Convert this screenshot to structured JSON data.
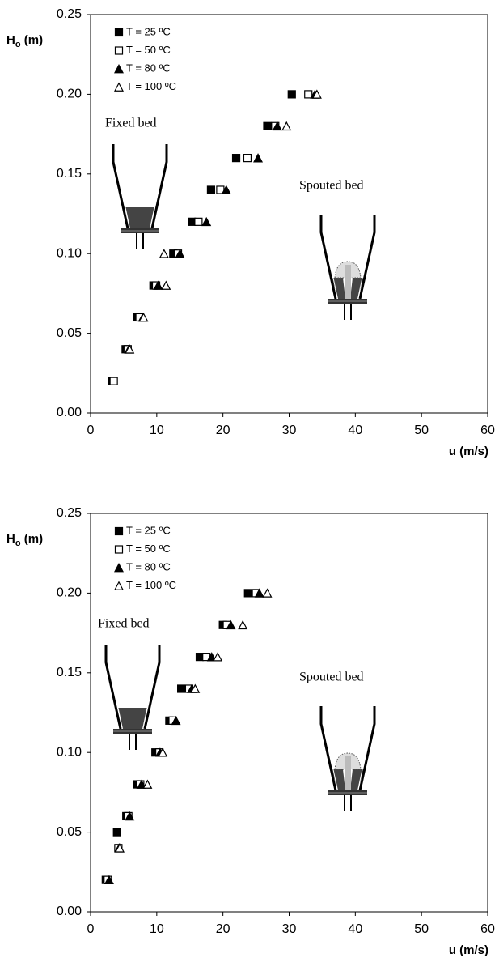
{
  "chart_data": [
    {
      "type": "scatter",
      "xlim": [
        0,
        60
      ],
      "ylim": [
        0,
        0.25
      ],
      "xticks": [
        0,
        10,
        20,
        30,
        40,
        50,
        60
      ],
      "yticks": [
        {
          "value": 0,
          "label": "0.00"
        },
        {
          "value": 0.05,
          "label": "0.05"
        },
        {
          "value": 0.1,
          "label": "0.10"
        },
        {
          "value": 0.15,
          "label": "0.15"
        },
        {
          "value": 0.2,
          "label": "0.20"
        },
        {
          "value": 0.25,
          "label": "0.25"
        }
      ],
      "x_label": "u (m/s)",
      "y_label": [
        "H",
        "o",
        " (m)"
      ],
      "legend": "upper left",
      "annotations": [
        "Fixed bed",
        "Spouted bed"
      ],
      "series": [
        {
          "name": "T = 25 ºC",
          "marker": "square",
          "filled": true,
          "color": "#000000",
          "x": [
            3.3,
            5.3,
            7.1,
            9.5,
            12.5,
            15.3,
            18.2,
            22.0,
            26.7,
            30.4
          ],
          "values": [
            0.02,
            0.04,
            0.06,
            0.08,
            0.1,
            0.12,
            0.14,
            0.16,
            0.18,
            0.2
          ]
        },
        {
          "name": "T = 50 ºC",
          "marker": "square",
          "filled": false,
          "color": "#000000",
          "x": [
            3.5,
            5.6,
            7.4,
            9.9,
            13.2,
            16.3,
            19.6,
            23.7,
            27.9,
            32.9
          ],
          "values": [
            0.02,
            0.04,
            0.06,
            0.08,
            0.1,
            0.12,
            0.14,
            0.16,
            0.18,
            0.2
          ]
        },
        {
          "name": "T = 80 ºC",
          "marker": "triangle",
          "filled": true,
          "color": "#000000",
          "x": [
            5.8,
            7.9,
            10.2,
            13.5,
            17.5,
            20.5,
            25.3,
            28.2,
            33.9
          ],
          "values": [
            0.04,
            0.06,
            0.08,
            0.1,
            0.12,
            0.14,
            0.16,
            0.18,
            0.2
          ]
        },
        {
          "name": "T = 100 ºC",
          "marker": "triangle",
          "filled": false,
          "color": "#000000",
          "x": [
            5.9,
            8.0,
            11.4,
            11.1,
            29.6,
            34.2
          ],
          "values": [
            0.04,
            0.06,
            0.08,
            0.1,
            0.18,
            0.2
          ]
        }
      ]
    },
    {
      "type": "scatter",
      "xlim": [
        0,
        60
      ],
      "ylim": [
        0,
        0.25
      ],
      "xticks": [
        0,
        10,
        20,
        30,
        40,
        50,
        60
      ],
      "yticks": [
        {
          "value": 0,
          "label": "0.00"
        },
        {
          "value": 0.05,
          "label": "0.05"
        },
        {
          "value": 0.1,
          "label": "0.10"
        },
        {
          "value": 0.15,
          "label": "0.15"
        },
        {
          "value": 0.2,
          "label": "0.20"
        },
        {
          "value": 0.25,
          "label": "0.25"
        }
      ],
      "x_label": "u (m/s)",
      "y_label": [
        "H",
        "o",
        " (m)"
      ],
      "legend": "upper left",
      "annotations": [
        "Fixed bed",
        "Spouted bed"
      ],
      "series": [
        {
          "name": "T = 25 ºC",
          "marker": "square",
          "filled": true,
          "color": "#000000",
          "x": [
            2.3,
            4.0,
            5.4,
            7.1,
            9.8,
            11.9,
            13.7,
            16.5,
            20.0,
            23.8
          ],
          "values": [
            0.02,
            0.05,
            0.06,
            0.08,
            0.1,
            0.12,
            0.14,
            0.16,
            0.18,
            0.2
          ]
        },
        {
          "name": "T = 50 ºC",
          "marker": "square",
          "filled": false,
          "color": "#000000",
          "x": [
            2.6,
            4.2,
            5.7,
            7.5,
            10.4,
            12.4,
            14.9,
            17.5,
            20.6,
            25.0
          ],
          "values": [
            0.02,
            0.04,
            0.06,
            0.08,
            0.1,
            0.12,
            0.14,
            0.16,
            0.18,
            0.2
          ]
        },
        {
          "name": "T = 80 ºC",
          "marker": "triangle",
          "filled": true,
          "color": "#000000",
          "x": [
            2.8,
            4.3,
            5.9,
            7.7,
            10.5,
            12.9,
            15.3,
            18.3,
            21.2,
            25.5
          ],
          "values": [
            0.02,
            0.04,
            0.06,
            0.08,
            0.1,
            0.12,
            0.14,
            0.16,
            0.18,
            0.2
          ]
        },
        {
          "name": "T = 100 ºC",
          "marker": "triangle",
          "filled": false,
          "color": "#000000",
          "x": [
            4.4,
            8.6,
            10.9,
            15.8,
            19.2,
            23.0,
            26.7
          ],
          "values": [
            0.04,
            0.08,
            0.1,
            0.14,
            0.16,
            0.18,
            0.2
          ]
        }
      ]
    }
  ]
}
